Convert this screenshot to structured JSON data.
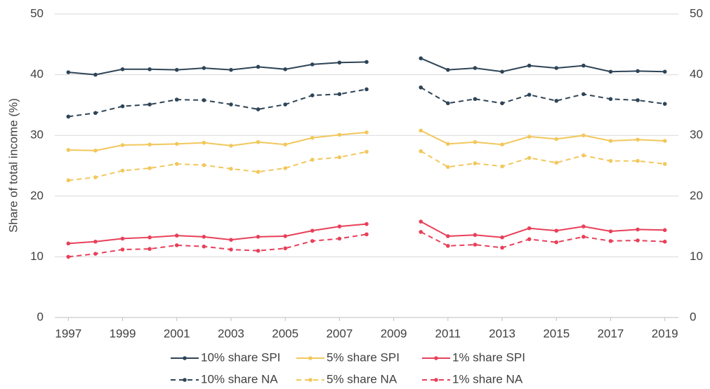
{
  "chart_data": {
    "type": "line",
    "y_label": "Share of total income (%)",
    "x": [
      1997,
      1998,
      1999,
      2000,
      2001,
      2002,
      2003,
      2004,
      2005,
      2006,
      2007,
      2008,
      2009,
      2010,
      2011,
      2012,
      2013,
      2014,
      2015,
      2016,
      2017,
      2018,
      2019
    ],
    "xlim": [
      1996.5,
      2019.5
    ],
    "xticks": [
      1997,
      1999,
      2001,
      2003,
      2005,
      2007,
      2009,
      2011,
      2013,
      2015,
      2017,
      2019
    ],
    "ylim": [
      0,
      50
    ],
    "yticks": [
      0,
      10,
      20,
      30,
      40,
      50
    ],
    "y2lim": [
      0,
      50
    ],
    "y2ticks": [
      0,
      10,
      20,
      30,
      40,
      50
    ],
    "grid": true,
    "legend": "bottom",
    "series": [
      {
        "name": "10% share SPI",
        "color": "#2e4457",
        "linestyle": "solid",
        "values": [
          40.4,
          40.0,
          40.9,
          40.9,
          40.8,
          41.1,
          40.8,
          41.3,
          40.9,
          41.7,
          42.0,
          42.1,
          null,
          42.7,
          40.8,
          41.1,
          40.5,
          41.5,
          41.1,
          41.5,
          40.5,
          40.6,
          40.5
        ]
      },
      {
        "name": "5% share SPI",
        "color": "#f2c75c",
        "linestyle": "solid",
        "values": [
          27.6,
          27.5,
          28.4,
          28.5,
          28.6,
          28.8,
          28.3,
          28.9,
          28.5,
          29.6,
          30.1,
          30.5,
          null,
          30.8,
          28.6,
          28.9,
          28.5,
          29.8,
          29.4,
          30.0,
          29.1,
          29.3,
          29.1
        ]
      },
      {
        "name": "1% share SPI",
        "color": "#e8405a",
        "linestyle": "solid",
        "values": [
          12.2,
          12.5,
          13.0,
          13.2,
          13.5,
          13.3,
          12.8,
          13.3,
          13.4,
          14.3,
          15.0,
          15.4,
          null,
          15.8,
          13.4,
          13.6,
          13.2,
          14.7,
          14.3,
          15.0,
          14.2,
          14.5,
          14.4
        ]
      },
      {
        "name": "10% share NA",
        "color": "#2e4457",
        "linestyle": "dashed",
        "values": [
          33.1,
          33.7,
          34.8,
          35.1,
          35.9,
          35.8,
          35.1,
          34.3,
          35.1,
          36.6,
          36.8,
          37.6,
          null,
          37.9,
          35.3,
          36.0,
          35.3,
          36.7,
          35.7,
          36.8,
          36.0,
          35.8,
          35.2
        ]
      },
      {
        "name": "5% share NA",
        "color": "#f2c75c",
        "linestyle": "dashed",
        "values": [
          22.6,
          23.1,
          24.2,
          24.6,
          25.3,
          25.1,
          24.5,
          24.0,
          24.6,
          26.0,
          26.4,
          27.3,
          null,
          27.4,
          24.8,
          25.4,
          24.9,
          26.3,
          25.5,
          26.7,
          25.8,
          25.8,
          25.3
        ]
      },
      {
        "name": "1% share NA",
        "color": "#e8405a",
        "linestyle": "dashed",
        "values": [
          10.0,
          10.5,
          11.2,
          11.3,
          11.9,
          11.7,
          11.2,
          11.0,
          11.4,
          12.6,
          13.0,
          13.7,
          null,
          14.1,
          11.8,
          12.0,
          11.5,
          12.9,
          12.4,
          13.3,
          12.6,
          12.7,
          12.5
        ]
      }
    ]
  }
}
